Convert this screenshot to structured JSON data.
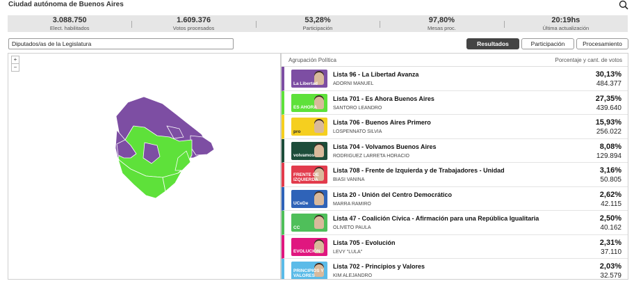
{
  "header": {
    "title": "Ciudad autónoma de Buenos Aires",
    "search_icon": "search-icon"
  },
  "stats": [
    {
      "value": "3.088.750",
      "label": "Elect. habilitados"
    },
    {
      "value": "1.609.376",
      "label": "Votos procesados"
    },
    {
      "value": "53,28%",
      "label": "Participación"
    },
    {
      "value": "97,80%",
      "label": "Mesas proc."
    },
    {
      "value": "20:19hs",
      "label": "Última actualización"
    }
  ],
  "category_select": {
    "value": "Diputados/as de la Legislatura"
  },
  "view_buttons": {
    "results": "Resultados",
    "participation": "Participación",
    "processing": "Procesamiento"
  },
  "map": {
    "zoom_in": "+",
    "zoom_out": "−",
    "colors": {
      "purple": "#7d4ea3",
      "green": "#5ee13a"
    }
  },
  "results": {
    "col_left": "Agrupación Política",
    "col_right": "Porcentaje y cant. de votos",
    "rows": [
      {
        "party": "Lista 96 - La Libertad Avanza",
        "candidate": "ADORNI MANUEL",
        "pct": "30,13%",
        "votes": "484.377",
        "color": "#7d4ea3",
        "logo_text": "La Libertad"
      },
      {
        "party": "Lista 701 - Es Ahora Buenos Aires",
        "candidate": "SANTORO LEANDRO",
        "pct": "27,35%",
        "votes": "439.640",
        "color": "#5ee13a",
        "logo_text": "ES AHORA"
      },
      {
        "party": "Lista 706 - Buenos Aires Primero",
        "candidate": "LOSPENNATO SILVIA",
        "pct": "15,93%",
        "votes": "256.022",
        "color": "#f5cf1f",
        "logo_text": "pro"
      },
      {
        "party": "Lista 704 - Volvamos Buenos Aires",
        "candidate": "RODRIGUEZ LARRETA HORACIO",
        "pct": "8,08%",
        "votes": "129.894",
        "color": "#1d4d3a",
        "logo_text": "volvamos"
      },
      {
        "party": "Lista 708 - Frente de Izquierda y de Trabajadores - Unidad",
        "candidate": "BIASI VANINA",
        "pct": "3,16%",
        "votes": "50.805",
        "color": "#e23b4c",
        "logo_text": "FRENTE DE IZQUIERDA"
      },
      {
        "party": "Lista 20 - Unión del Centro Democrático",
        "candidate": "MARRA RAMIRO",
        "pct": "2,62%",
        "votes": "42.115",
        "color": "#2f63b8",
        "logo_text": "UCeDe"
      },
      {
        "party": "Lista 47 - Coalición Cívica - Afirmación para una República Igualitaria",
        "candidate": "OLIVETO PAULA",
        "pct": "2,50%",
        "votes": "40.162",
        "color": "#4fbf5a",
        "logo_text": "CC"
      },
      {
        "party": "Lista 705 - Evolución",
        "candidate": "LEVY \"LULA\"",
        "pct": "2,31%",
        "votes": "37.110",
        "color": "#e0177f",
        "logo_text": "EVOLUCIÓN"
      },
      {
        "party": "Lista 702 - Principios y Valores",
        "candidate": "KIM ALEJANDRO",
        "pct": "2,03%",
        "votes": "32.579",
        "color": "#5bbbe8",
        "logo_text": "PRINCIPIOS Y VALORES"
      }
    ]
  }
}
